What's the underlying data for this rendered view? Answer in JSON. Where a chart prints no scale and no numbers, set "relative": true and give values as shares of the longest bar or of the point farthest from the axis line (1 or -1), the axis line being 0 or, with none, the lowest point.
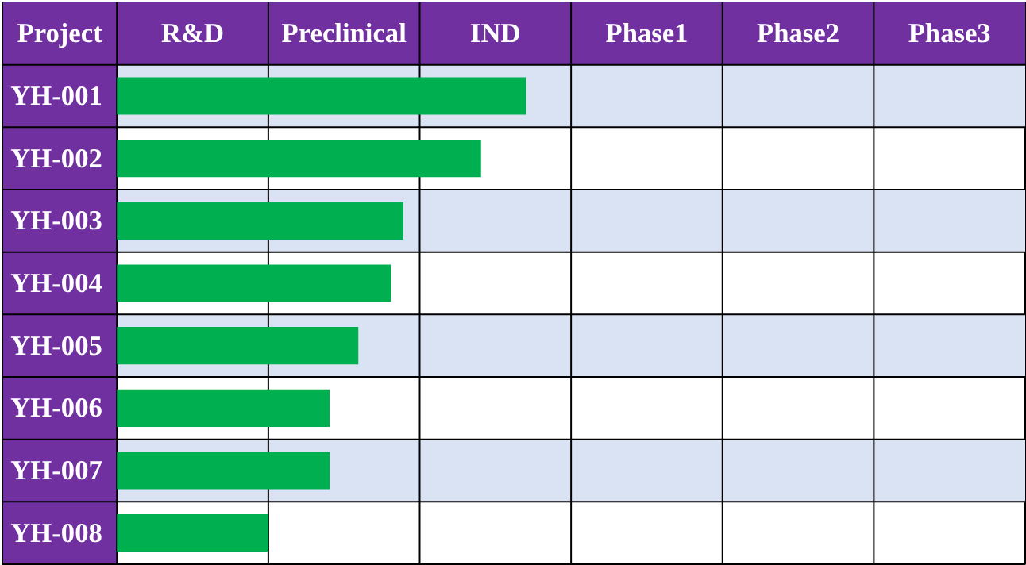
{
  "chart_data": {
    "type": "bar",
    "orientation": "horizontal",
    "relative": true,
    "ylabel": "Project",
    "categories": [
      "YH-001",
      "YH-002",
      "YH-003",
      "YH-004",
      "YH-005",
      "YH-006",
      "YH-007",
      "YH-008"
    ],
    "values": [
      1.0,
      0.89,
      0.7,
      0.67,
      0.59,
      0.52,
      0.52,
      0.37
    ],
    "color": "#00b050",
    "annotations": [
      "R&D",
      "Preclinical",
      "IND",
      "Phase1",
      "Phase2",
      "Phase3"
    ],
    "grid": true
  }
}
